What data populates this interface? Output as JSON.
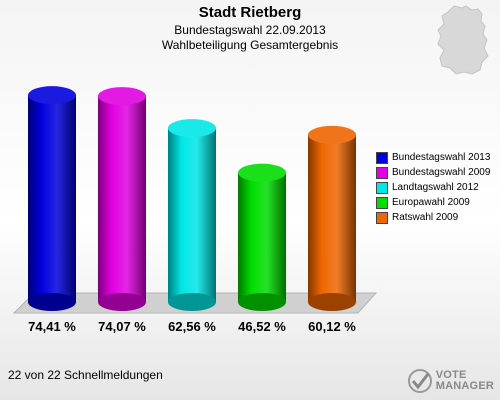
{
  "header": {
    "title": "Stadt Rietberg",
    "subtitle1": "Bundestagswahl 22.09.2013",
    "subtitle2": "Wahlbeteiligung Gesamtergebnis"
  },
  "chart_data": {
    "type": "bar",
    "title": "Stadt Rietberg",
    "subtitle": "Bundestagswahl 22.09.2013 — Wahlbeteiligung Gesamtergebnis",
    "categories": [
      "Bundestagswahl 2013",
      "Bundestagswahl 2009",
      "Landtagswahl 2012",
      "Europawahl 2009",
      "Ratswahl 2009"
    ],
    "values": [
      74.41,
      74.07,
      62.56,
      46.52,
      60.12
    ],
    "value_labels": [
      "74,41 %",
      "74,07 %",
      "62,56 %",
      "46,52 %",
      "60,12 %"
    ],
    "colors": [
      "#0000dd",
      "#e000e0",
      "#00e6e6",
      "#00dd00",
      "#ee6600"
    ],
    "unit": "%",
    "ylim": [
      0,
      100
    ],
    "grid": false,
    "legend_position": "right"
  },
  "legend": {
    "items": [
      {
        "label": "Bundestagswahl 2013",
        "color": "#0000dd"
      },
      {
        "label": "Bundestagswahl 2009",
        "color": "#e000e0"
      },
      {
        "label": "Landtagswahl 2012",
        "color": "#00e6e6"
      },
      {
        "label": "Europawahl 2009",
        "color": "#00dd00"
      },
      {
        "label": "Ratswahl 2009",
        "color": "#ee6600"
      }
    ]
  },
  "footer": {
    "text": "22 von 22 Schnellmeldungen"
  },
  "brand": {
    "line1": "VOTE",
    "line2": "MANAGER",
    "icon": "vote-manager-logo-icon"
  },
  "map": {
    "icon": "germany-map-icon"
  }
}
